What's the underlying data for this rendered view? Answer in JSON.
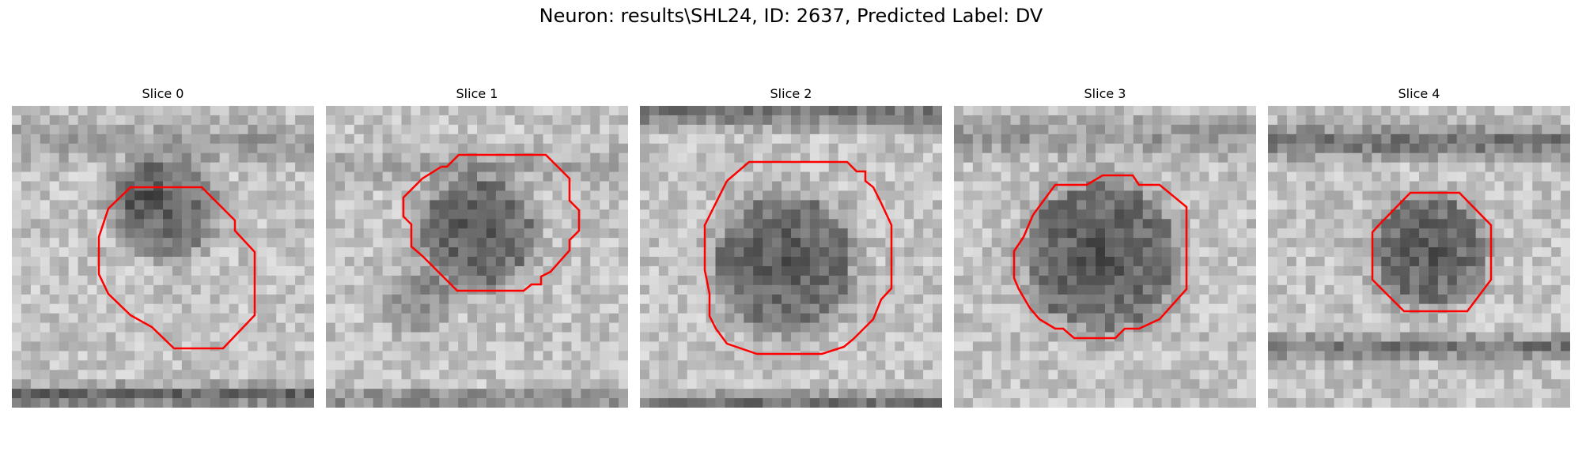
{
  "figure": {
    "title": "Neuron: results\\SHL24, ID: 2637, Predicted Label: DV"
  },
  "panels": [
    {
      "title": "Slice 0",
      "grid_seed": 11
    },
    {
      "title": "Slice 1",
      "grid_seed": 23
    },
    {
      "title": "Slice 2",
      "grid_seed": 37
    },
    {
      "title": "Slice 3",
      "grid_seed": 51
    },
    {
      "title": "Slice 4",
      "grid_seed": 67
    }
  ],
  "style": {
    "contour_color": "#ff0000",
    "colormap": "gray"
  }
}
